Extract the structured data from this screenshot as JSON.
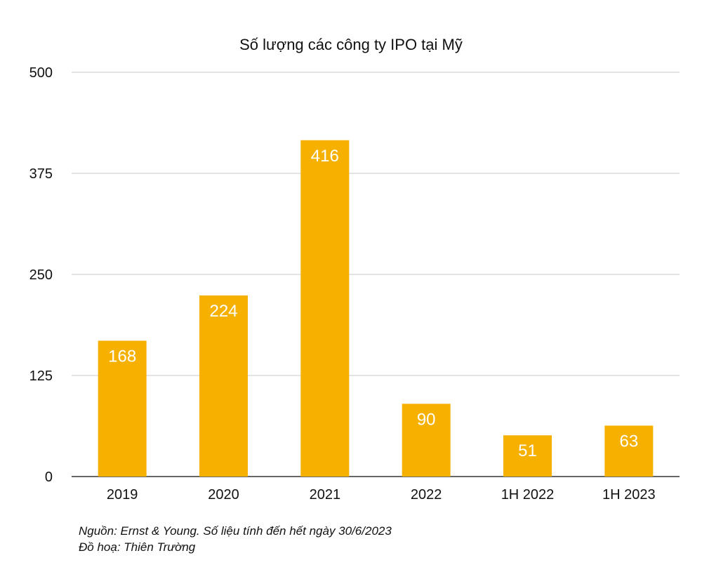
{
  "chart_data": {
    "type": "bar",
    "title": "Số lượng các công ty IPO tại Mỹ",
    "categories": [
      "2019",
      "2020",
      "2021",
      "2022",
      "1H 2022",
      "1H 2023"
    ],
    "values": [
      168,
      224,
      416,
      90,
      51,
      63
    ],
    "data_labels": [
      "168",
      "224",
      "416",
      "90",
      "51",
      "63"
    ],
    "xlabel": "",
    "ylabel": "",
    "ylim": [
      0,
      500
    ],
    "yticks": [
      0,
      125,
      250,
      375,
      500
    ],
    "ytick_labels": [
      "0",
      "125",
      "250",
      "375",
      "500"
    ],
    "grid": true,
    "legend": "none",
    "bar_color": "#F6B100",
    "label_color": "#FFFFFF",
    "grid_color": "#C8C8C8"
  },
  "footer": {
    "source": "Nguồn: Ernst & Young. Số liệu tính đến hết ngày 30/6/2023",
    "credit": "Đồ hoạ: Thiên Trường"
  }
}
